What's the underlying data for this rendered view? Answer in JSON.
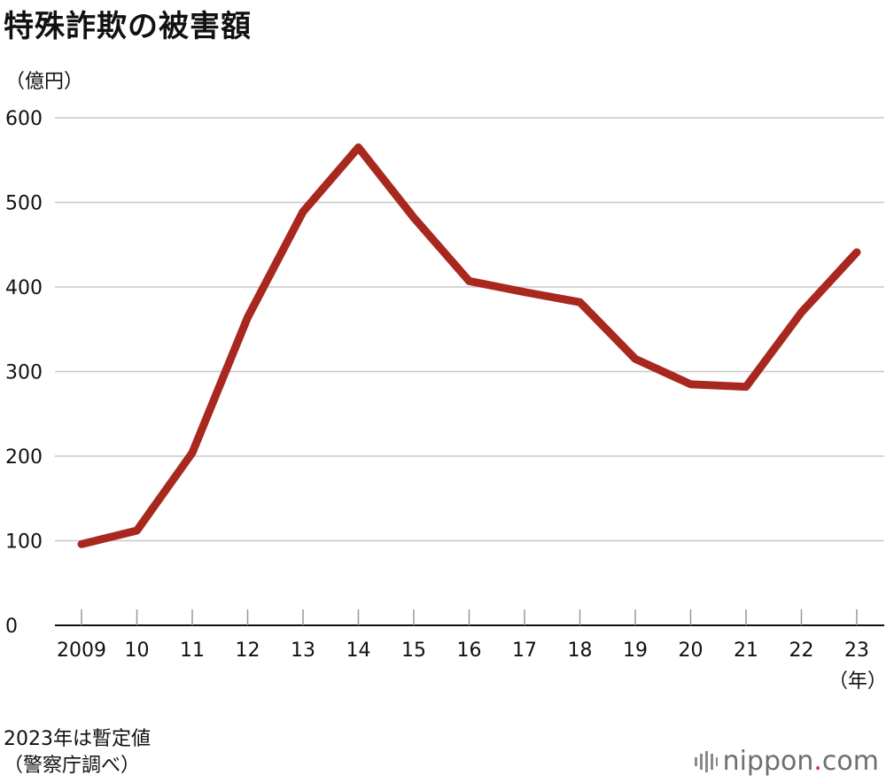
{
  "header": {
    "title": "特殊詐欺の被害額",
    "unit": "（億円）"
  },
  "chart_data": {
    "type": "line",
    "title": "特殊詐欺の被害額",
    "ylabel": "（億円）",
    "xlabel": "（年）",
    "categories": [
      "2009",
      "10",
      "11",
      "12",
      "13",
      "14",
      "15",
      "16",
      "17",
      "18",
      "19",
      "20",
      "21",
      "22",
      "23"
    ],
    "series": [
      {
        "values": [
          96,
          112,
          204,
          364,
          489,
          565,
          482,
          407,
          394,
          382,
          315,
          285,
          282,
          370,
          441
        ]
      }
    ],
    "ylim": [
      0,
      600
    ],
    "yticks": [
      0,
      100,
      200,
      300,
      400,
      500,
      600
    ],
    "grid": true,
    "colors": {
      "line": "#a8281f",
      "grid": "#c8c8c8",
      "axis": "#111111"
    }
  },
  "footer": {
    "note_line1": "2023年は暫定値",
    "note_line2": "（警察庁調べ）",
    "brand_name": "nippon",
    "brand_dot": ".",
    "brand_tld": "com",
    "brand_icon": "bars-icon"
  }
}
